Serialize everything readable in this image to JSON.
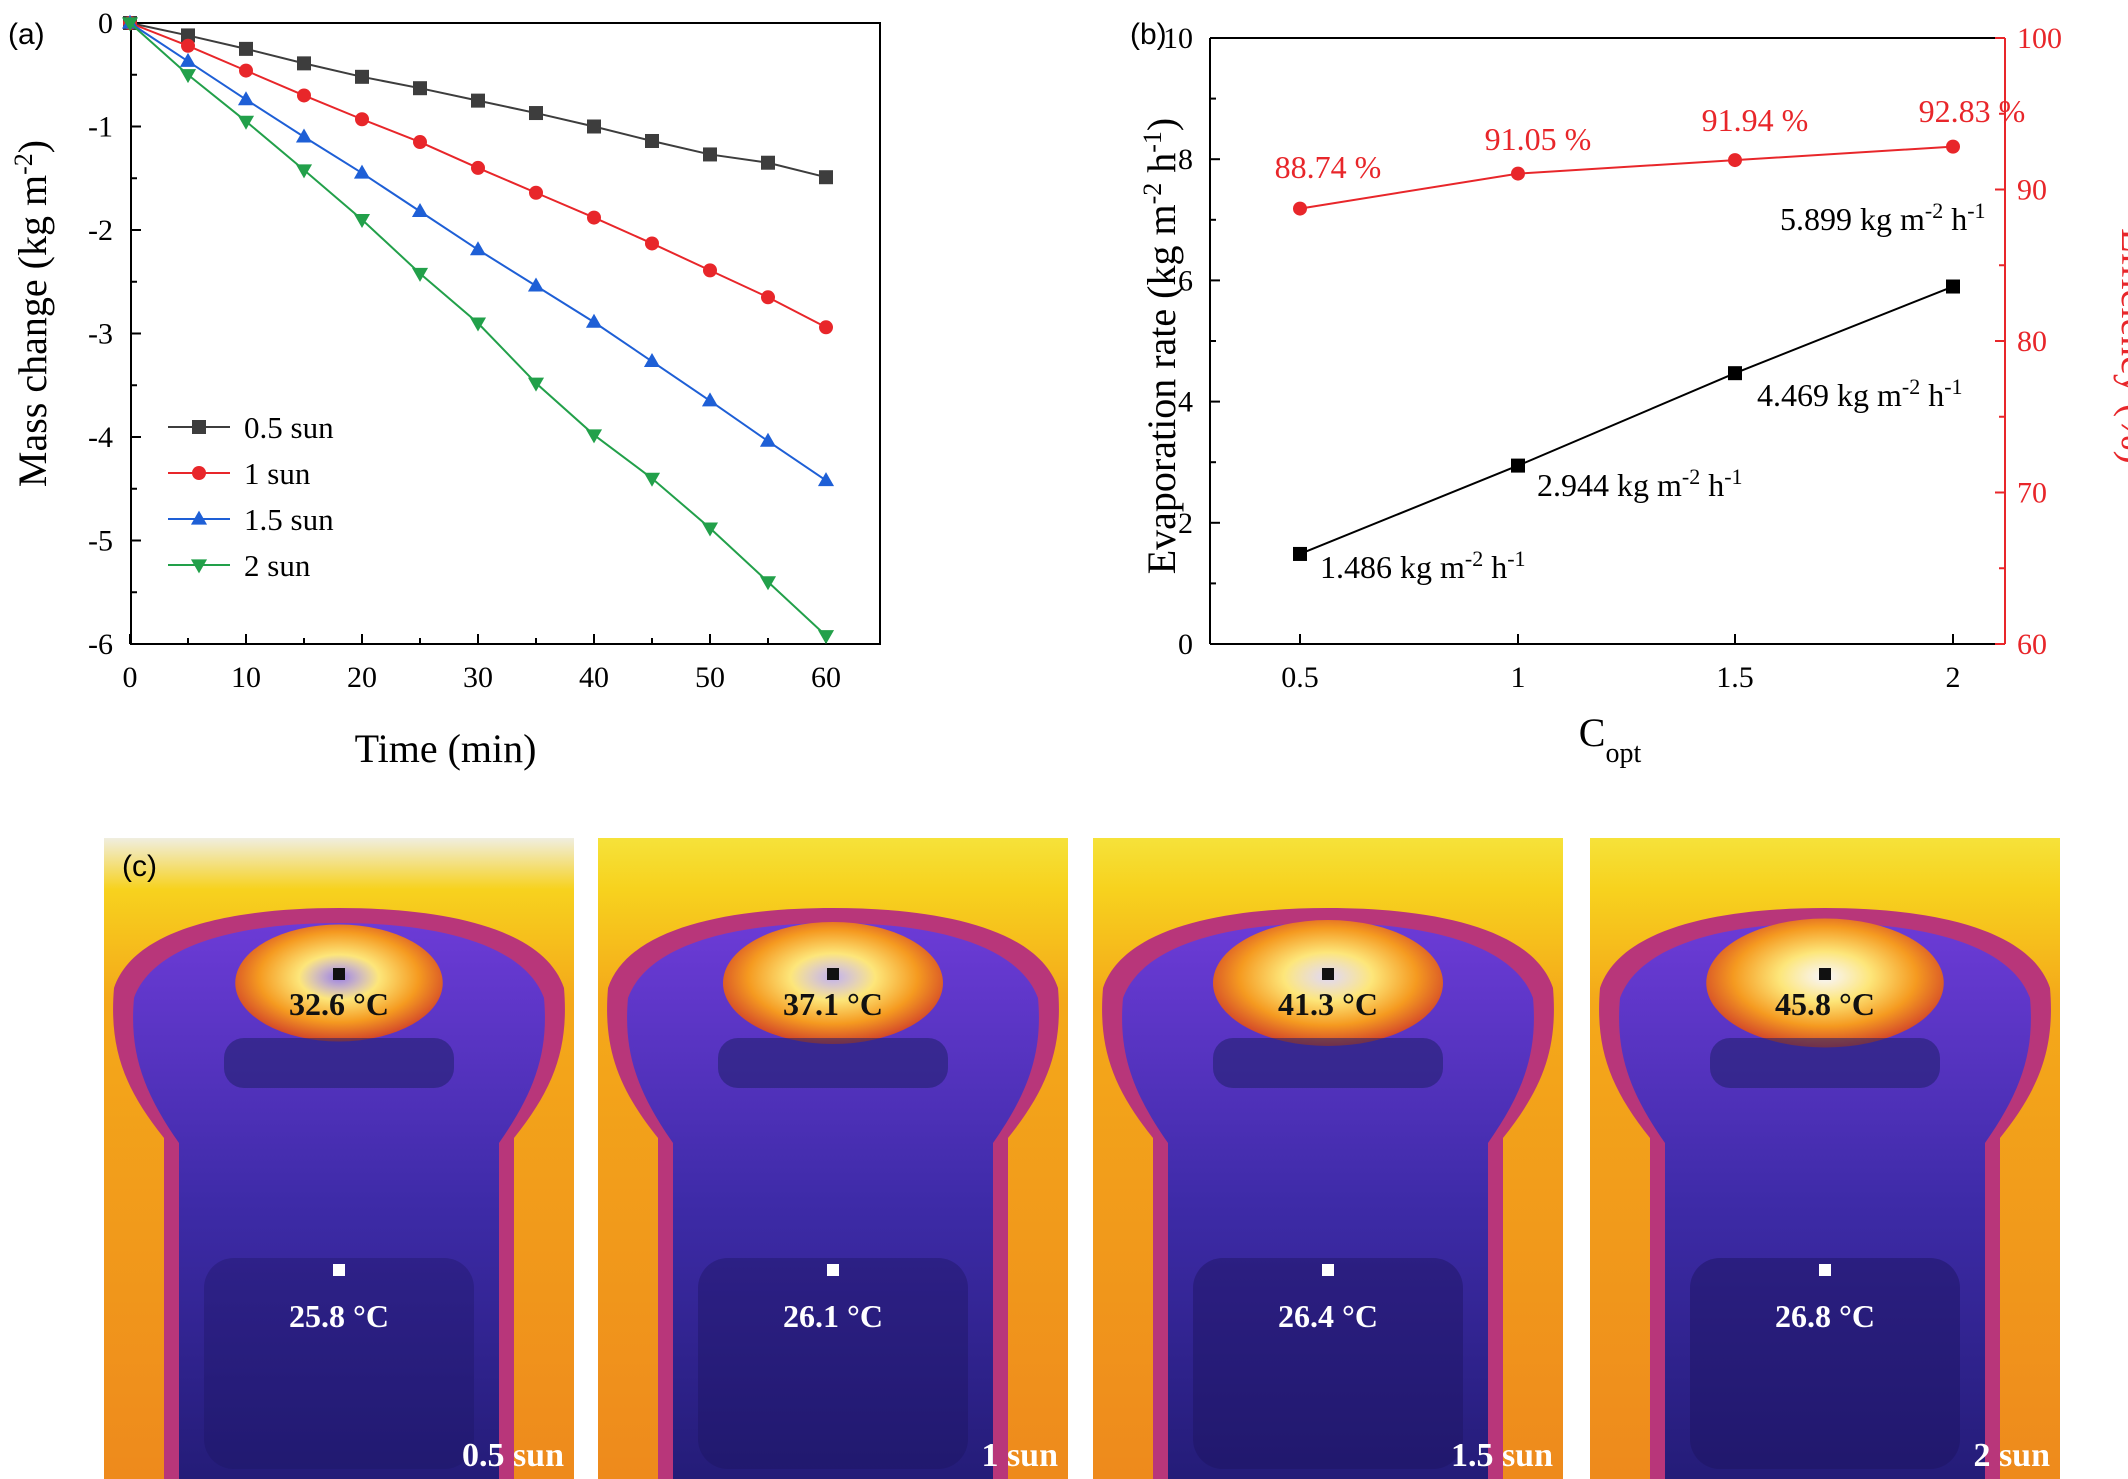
{
  "chart_data": [
    {
      "panel": "(a)",
      "type": "line",
      "xlabel": "Time (min)",
      "ylabel": "Mass change (kg m-2)",
      "ylabel_main": "Mass change (kg m",
      "ylabel_sup": "-2",
      "ylabel_end": ")",
      "xlim": [
        0,
        60
      ],
      "ylim": [
        -6,
        0
      ],
      "xticks": [
        0,
        10,
        20,
        30,
        40,
        50,
        60
      ],
      "yticks": [
        0,
        -1,
        -2,
        -3,
        -4,
        -5,
        -6
      ],
      "x": [
        0,
        5,
        10,
        15,
        20,
        25,
        30,
        35,
        40,
        45,
        50,
        55,
        60
      ],
      "legend_position": "lower-left",
      "series": [
        {
          "name": "0.5 sun",
          "color": "#3d3d3d",
          "marker": "square",
          "values": [
            0,
            -0.12,
            -0.25,
            -0.39,
            -0.52,
            -0.63,
            -0.75,
            -0.87,
            -1.0,
            -1.14,
            -1.27,
            -1.35,
            -1.49
          ]
        },
        {
          "name": "1 sun",
          "color": "#e8262a",
          "marker": "circle",
          "values": [
            0,
            -0.22,
            -0.46,
            -0.7,
            -0.93,
            -1.15,
            -1.4,
            -1.64,
            -1.88,
            -2.13,
            -2.39,
            -2.65,
            -2.94
          ]
        },
        {
          "name": "1.5 sun",
          "color": "#1e5fd6",
          "marker": "triangle-up",
          "values": [
            0,
            -0.37,
            -0.74,
            -1.1,
            -1.45,
            -1.82,
            -2.19,
            -2.54,
            -2.89,
            -3.27,
            -3.65,
            -4.04,
            -4.42
          ]
        },
        {
          "name": "2 sun",
          "color": "#22a04a",
          "marker": "triangle-down",
          "values": [
            0,
            -0.5,
            -0.95,
            -1.42,
            -1.9,
            -2.42,
            -2.9,
            -3.48,
            -3.98,
            -4.4,
            -4.88,
            -5.4,
            -5.92
          ]
        }
      ]
    },
    {
      "panel": "(b)",
      "type": "line",
      "xlabel": "C",
      "xlabel_sub": "opt",
      "ylabel_left": "Evaporation rate (kg m-2 h-1)",
      "ylabel_left_parts": [
        "Evaporation rate (kg m",
        "-2",
        " h",
        "-1",
        ")"
      ],
      "ylabel_right": "Efficiency (%)",
      "categories": [
        "0.5",
        "1",
        "1.5",
        "2"
      ],
      "ylim_left": [
        0,
        10
      ],
      "ylim_right": [
        60,
        100
      ],
      "yticks_left": [
        0,
        2,
        4,
        6,
        8,
        10
      ],
      "yticks_right": [
        60,
        70,
        80,
        90,
        100
      ],
      "series": [
        {
          "name": "Evaporation rate",
          "axis": "left",
          "color": "#000000",
          "marker": "square",
          "values": [
            1.486,
            2.944,
            4.469,
            5.899
          ],
          "labels": [
            {
              "num": "1.486",
              "unit": "kg m",
              "sup1": "-2",
              "h": " h",
              "sup2": "-1"
            },
            {
              "num": "2.944",
              "unit": "kg m",
              "sup1": "-2",
              "h": " h",
              "sup2": "-1"
            },
            {
              "num": "4.469",
              "unit": "kg m",
              "sup1": "-2",
              "h": " h",
              "sup2": "-1"
            },
            {
              "num": "5.899",
              "unit": "kg m",
              "sup1": "-2",
              "h": " h",
              "sup2": "-1"
            }
          ]
        },
        {
          "name": "Efficiency",
          "axis": "right",
          "color": "#e8262a",
          "marker": "circle",
          "values": [
            88.74,
            91.05,
            91.94,
            92.83
          ],
          "labels": [
            "88.74 %",
            "91.05 %",
            "91.94 %",
            "92.83 %"
          ]
        }
      ]
    }
  ],
  "panel_c": {
    "label": "(c)",
    "images": [
      {
        "sun": "0.5 sun",
        "top_temp": "32.6 °C",
        "bottom_temp": "25.8 °C",
        "glow": 0.35
      },
      {
        "sun": "1 sun",
        "top_temp": "37.1 °C",
        "bottom_temp": "26.1 °C",
        "glow": 0.6
      },
      {
        "sun": "1.5 sun",
        "top_temp": "41.3 °C",
        "bottom_temp": "26.4 °C",
        "glow": 0.8
      },
      {
        "sun": "2 sun",
        "top_temp": "45.8 °C",
        "bottom_temp": "26.8 °C",
        "glow": 0.95
      }
    ]
  }
}
